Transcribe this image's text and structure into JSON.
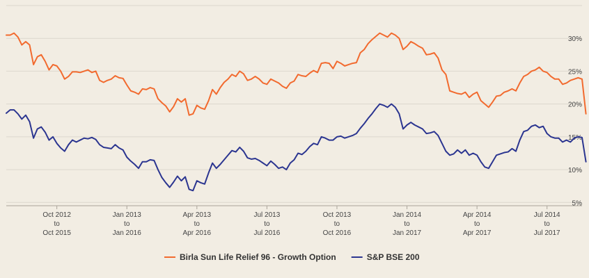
{
  "chart_data": {
    "type": "line",
    "title": "",
    "xlabel": "",
    "ylabel": "",
    "x_tick_labels": [
      {
        "line1": "Oct 2012",
        "line2": "to",
        "line3": "Oct 2015"
      },
      {
        "line1": "Jan 2013",
        "line2": "to",
        "line3": "Jan 2016"
      },
      {
        "line1": "Apr 2013",
        "line2": "to",
        "line3": "Apr 2016"
      },
      {
        "line1": "Jul 2013",
        "line2": "to",
        "line3": "Jul 2016"
      },
      {
        "line1": "Oct 2013",
        "line2": "to",
        "line3": "Oct 2016"
      },
      {
        "line1": "Jan 2014",
        "line2": "to",
        "line3": "Jan 2017"
      },
      {
        "line1": "Apr 2014",
        "line2": "to",
        "line3": "Apr 2017"
      },
      {
        "line1": "Jul 2014",
        "line2": "to",
        "line3": "Jul 2017"
      }
    ],
    "y_tick_labels": [
      "5%",
      "10%",
      "15%",
      "20%",
      "25%",
      "30%"
    ],
    "y_ticks": [
      5,
      10,
      15,
      20,
      25,
      30
    ],
    "ylim": [
      4.5,
      35
    ],
    "xlim_index": [
      0,
      148
    ],
    "x_tick_index": [
      13,
      31,
      49,
      67,
      85,
      103,
      121,
      139
    ],
    "grid": "horizontal",
    "legend_position": "bottom-center",
    "series": [
      {
        "name": "Birla Sun Life Relief 96 - Growth Option",
        "color": "#f26a2e",
        "values": [
          30.5,
          30.5,
          30.8,
          30.2,
          29.0,
          29.5,
          29.0,
          26.0,
          27.2,
          27.5,
          26.5,
          25.2,
          26.0,
          25.8,
          25.0,
          23.8,
          24.2,
          24.9,
          24.9,
          24.8,
          25.0,
          25.2,
          24.8,
          25.0,
          23.6,
          23.3,
          23.6,
          23.8,
          24.3,
          24.0,
          23.9,
          22.9,
          22.0,
          21.8,
          21.5,
          22.3,
          22.2,
          22.5,
          22.3,
          20.8,
          20.2,
          19.7,
          18.8,
          19.6,
          20.8,
          20.3,
          20.8,
          18.3,
          18.5,
          19.8,
          19.4,
          19.2,
          20.5,
          22.2,
          21.5,
          22.5,
          23.3,
          23.8,
          24.5,
          24.2,
          25.0,
          24.6,
          23.6,
          23.8,
          24.2,
          23.8,
          23.2,
          23.0,
          23.8,
          23.5,
          23.2,
          22.7,
          22.4,
          23.2,
          23.5,
          24.5,
          24.3,
          24.2,
          24.7,
          25.1,
          24.8,
          26.2,
          26.3,
          26.2,
          25.4,
          26.5,
          26.2,
          25.8,
          26.0,
          26.2,
          26.3,
          27.8,
          28.3,
          29.2,
          29.8,
          30.3,
          30.8,
          30.5,
          30.2,
          30.8,
          30.5,
          30.0,
          28.3,
          28.8,
          29.5,
          29.2,
          28.8,
          28.5,
          27.5,
          27.6,
          27.8,
          27.0,
          25.2,
          24.5,
          22.0,
          21.8,
          21.6,
          21.5,
          21.8,
          21.0,
          21.5,
          21.8,
          20.5,
          20.0,
          19.5,
          20.3,
          21.2,
          21.3,
          21.8,
          22.0,
          22.3,
          22.0,
          23.2,
          24.2,
          24.5,
          25.0,
          25.2,
          25.6,
          25.0,
          24.8,
          24.2,
          23.8,
          23.8,
          23.0,
          23.2,
          23.6,
          23.8,
          24.0,
          23.8,
          18.5
        ]
      },
      {
        "name": "S&P BSE 200",
        "color": "#2b3590",
        "values": [
          18.6,
          19.1,
          19.1,
          18.5,
          17.7,
          18.3,
          17.3,
          14.8,
          16.2,
          16.5,
          15.7,
          14.5,
          15.0,
          14.0,
          13.3,
          12.8,
          13.8,
          14.5,
          14.2,
          14.5,
          14.8,
          14.7,
          14.9,
          14.6,
          13.8,
          13.4,
          13.3,
          13.2,
          13.8,
          13.3,
          13.0,
          11.9,
          11.3,
          10.8,
          10.2,
          11.2,
          11.2,
          11.5,
          11.4,
          10.0,
          8.8,
          8.0,
          7.3,
          8.1,
          9.0,
          8.3,
          8.9,
          7.0,
          6.8,
          8.3,
          8.0,
          7.8,
          9.5,
          11.0,
          10.2,
          10.8,
          11.5,
          12.2,
          12.9,
          12.7,
          13.4,
          12.8,
          11.8,
          11.6,
          11.7,
          11.4,
          11.0,
          10.6,
          11.3,
          10.8,
          10.2,
          10.4,
          10.0,
          11.0,
          11.5,
          12.5,
          12.3,
          12.8,
          13.5,
          14.0,
          13.8,
          15.0,
          14.8,
          14.5,
          14.5,
          15.0,
          15.1,
          14.8,
          15.0,
          15.2,
          15.5,
          16.3,
          17.0,
          17.8,
          18.5,
          19.3,
          20.0,
          19.8,
          19.5,
          20.0,
          19.5,
          18.5,
          16.2,
          16.8,
          17.2,
          16.8,
          16.5,
          16.2,
          15.5,
          15.6,
          15.8,
          15.2,
          14.0,
          12.8,
          12.2,
          12.4,
          13.0,
          12.5,
          13.0,
          12.2,
          12.5,
          12.2,
          11.2,
          10.4,
          10.2,
          11.2,
          12.2,
          12.4,
          12.6,
          12.7,
          13.2,
          12.8,
          14.5,
          15.8,
          16.0,
          16.6,
          16.8,
          16.4,
          16.6,
          15.5,
          15.0,
          14.8,
          14.8,
          14.2,
          14.5,
          14.2,
          14.8,
          15.0,
          14.9,
          11.2
        ]
      }
    ],
    "series_tail_extra": {
      "note_free": true
    }
  },
  "legend": {
    "items": [
      {
        "label": "Birla Sun Life Relief 96 - Growth Option",
        "color": "#f26a2e"
      },
      {
        "label": "S&P BSE 200",
        "color": "#2b3590"
      }
    ]
  },
  "colors": {
    "background": "#f2ede3",
    "grid": "#dcd7cd",
    "axis": "#aaa49a",
    "fund": "#f26a2e",
    "index": "#2b3590"
  }
}
